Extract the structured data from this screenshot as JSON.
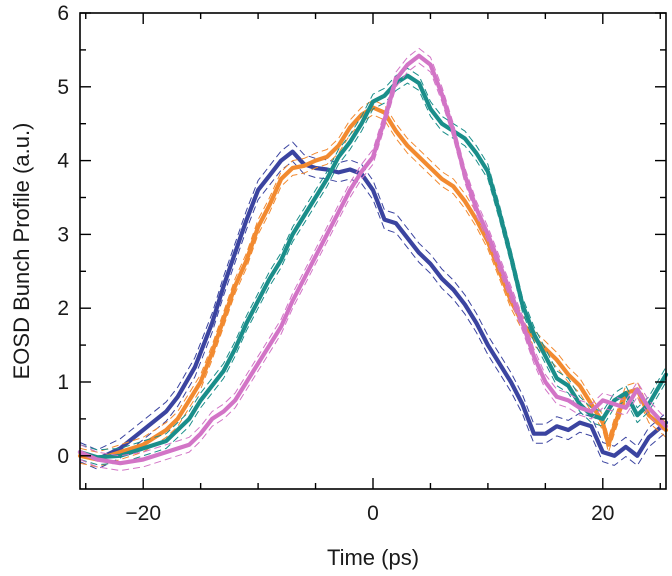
{
  "chart_data": {
    "type": "line",
    "xlabel": "Time (ps)",
    "ylabel": "EOSD Bunch Profile (a.u.)",
    "xlim": [
      -25.5,
      25.5
    ],
    "ylim": [
      -0.45,
      6
    ],
    "x_major_ticks": [
      -20,
      0,
      20
    ],
    "x_tick_labels": [
      "−20",
      "0",
      "20"
    ],
    "x_minor_ticks": [
      -25,
      -15,
      -10,
      -5,
      5,
      10,
      15,
      25
    ],
    "y_major_ticks": [
      0,
      1,
      2,
      3,
      4,
      5,
      6
    ],
    "y_tick_labels": [
      "0",
      "1",
      "2",
      "3",
      "4",
      "5",
      "6"
    ],
    "grid": false,
    "uncertainty_bands": "dashed lines above and below each series",
    "series": [
      {
        "color": "#3b44a0",
        "band": 0.13,
        "points": [
          [
            -25.5,
            0.05
          ],
          [
            -24,
            -0.05
          ],
          [
            -22,
            0.1
          ],
          [
            -20,
            0.35
          ],
          [
            -18,
            0.6
          ],
          [
            -17,
            0.8
          ],
          [
            -15.5,
            1.2
          ],
          [
            -14,
            1.8
          ],
          [
            -13,
            2.3
          ],
          [
            -12,
            2.75
          ],
          [
            -11,
            3.2
          ],
          [
            -10,
            3.6
          ],
          [
            -9,
            3.8
          ],
          [
            -8,
            4.0
          ],
          [
            -7,
            4.12
          ],
          [
            -6,
            3.95
          ],
          [
            -5,
            3.9
          ],
          [
            -4,
            3.88
          ],
          [
            -3,
            3.84
          ],
          [
            -2,
            3.88
          ],
          [
            -1,
            3.82
          ],
          [
            0,
            3.6
          ],
          [
            1,
            3.2
          ],
          [
            2,
            3.15
          ],
          [
            3,
            2.95
          ],
          [
            4,
            2.75
          ],
          [
            5,
            2.6
          ],
          [
            6,
            2.4
          ],
          [
            7,
            2.25
          ],
          [
            8,
            2.05
          ],
          [
            9,
            1.8
          ],
          [
            10,
            1.5
          ],
          [
            11,
            1.25
          ],
          [
            12,
            1.0
          ],
          [
            13,
            0.7
          ],
          [
            13.5,
            0.5
          ],
          [
            14,
            0.3
          ],
          [
            15,
            0.3
          ],
          [
            16,
            0.4
          ],
          [
            17,
            0.35
          ],
          [
            18,
            0.45
          ],
          [
            19,
            0.4
          ],
          [
            20,
            0.05
          ],
          [
            21,
            0.0
          ],
          [
            22,
            0.12
          ],
          [
            23,
            0.0
          ],
          [
            24,
            0.25
          ],
          [
            25.5,
            0.45
          ]
        ]
      },
      {
        "color": "#f28a30",
        "band": 0.1,
        "points": [
          [
            -25.5,
            0.0
          ],
          [
            -24,
            -0.05
          ],
          [
            -22,
            0.05
          ],
          [
            -20,
            0.15
          ],
          [
            -18,
            0.35
          ],
          [
            -17,
            0.5
          ],
          [
            -16,
            0.75
          ],
          [
            -15,
            1.0
          ],
          [
            -14,
            1.4
          ],
          [
            -13,
            1.85
          ],
          [
            -12,
            2.3
          ],
          [
            -11,
            2.65
          ],
          [
            -10,
            3.1
          ],
          [
            -9,
            3.4
          ],
          [
            -8,
            3.75
          ],
          [
            -7,
            3.9
          ],
          [
            -6,
            3.93
          ],
          [
            -5,
            4.0
          ],
          [
            -4,
            4.05
          ],
          [
            -3,
            4.2
          ],
          [
            -2,
            4.45
          ],
          [
            -1,
            4.62
          ],
          [
            0,
            4.72
          ],
          [
            1,
            4.65
          ],
          [
            2,
            4.4
          ],
          [
            3,
            4.2
          ],
          [
            4,
            4.05
          ],
          [
            5,
            3.9
          ],
          [
            6,
            3.75
          ],
          [
            7,
            3.65
          ],
          [
            8,
            3.45
          ],
          [
            9,
            3.2
          ],
          [
            10,
            2.9
          ],
          [
            11,
            2.5
          ],
          [
            12,
            2.1
          ],
          [
            13,
            1.8
          ],
          [
            14,
            1.6
          ],
          [
            15,
            1.45
          ],
          [
            16,
            1.3
          ],
          [
            17,
            1.1
          ],
          [
            18,
            0.95
          ],
          [
            19,
            0.7
          ],
          [
            20,
            0.45
          ],
          [
            20.5,
            0.15
          ],
          [
            21,
            0.4
          ],
          [
            22,
            0.85
          ],
          [
            23,
            0.9
          ],
          [
            24,
            0.55
          ],
          [
            25.5,
            0.35
          ]
        ]
      },
      {
        "color": "#1a8e8a",
        "band": 0.1,
        "points": [
          [
            -25.5,
            0.05
          ],
          [
            -24,
            -0.02
          ],
          [
            -22,
            0.0
          ],
          [
            -20,
            0.1
          ],
          [
            -18,
            0.2
          ],
          [
            -16,
            0.5
          ],
          [
            -15,
            0.75
          ],
          [
            -14,
            0.95
          ],
          [
            -13,
            1.15
          ],
          [
            -12,
            1.45
          ],
          [
            -11,
            1.8
          ],
          [
            -10,
            2.1
          ],
          [
            -9,
            2.4
          ],
          [
            -8,
            2.65
          ],
          [
            -7,
            3.0
          ],
          [
            -6,
            3.25
          ],
          [
            -5,
            3.5
          ],
          [
            -4,
            3.75
          ],
          [
            -3,
            4.05
          ],
          [
            -2,
            4.25
          ],
          [
            -1,
            4.5
          ],
          [
            0,
            4.8
          ],
          [
            1,
            4.88
          ],
          [
            2,
            5.05
          ],
          [
            3,
            5.15
          ],
          [
            4,
            5.05
          ],
          [
            5,
            4.7
          ],
          [
            6,
            4.5
          ],
          [
            7,
            4.4
          ],
          [
            8,
            4.3
          ],
          [
            9,
            4.1
          ],
          [
            10,
            3.85
          ],
          [
            11,
            3.3
          ],
          [
            12,
            2.7
          ],
          [
            13,
            2.05
          ],
          [
            14,
            1.65
          ],
          [
            15,
            1.35
          ],
          [
            16,
            1.05
          ],
          [
            17,
            0.95
          ],
          [
            18,
            0.7
          ],
          [
            19,
            0.55
          ],
          [
            20,
            0.5
          ],
          [
            21,
            0.75
          ],
          [
            22,
            0.85
          ],
          [
            23,
            0.55
          ],
          [
            24,
            0.7
          ],
          [
            25.5,
            1.1
          ]
        ]
      },
      {
        "color": "#d274c6",
        "band": 0.1,
        "points": [
          [
            -25.5,
            0.05
          ],
          [
            -24,
            -0.05
          ],
          [
            -22,
            -0.1
          ],
          [
            -20,
            -0.05
          ],
          [
            -18,
            0.05
          ],
          [
            -16,
            0.15
          ],
          [
            -15,
            0.3
          ],
          [
            -14,
            0.5
          ],
          [
            -13,
            0.6
          ],
          [
            -12,
            0.75
          ],
          [
            -11,
            1.0
          ],
          [
            -10,
            1.25
          ],
          [
            -9,
            1.5
          ],
          [
            -8,
            1.75
          ],
          [
            -7,
            2.1
          ],
          [
            -6,
            2.4
          ],
          [
            -5,
            2.7
          ],
          [
            -4,
            3.0
          ],
          [
            -3,
            3.3
          ],
          [
            -2,
            3.6
          ],
          [
            -1,
            3.85
          ],
          [
            0,
            4.05
          ],
          [
            1,
            4.55
          ],
          [
            2,
            5.1
          ],
          [
            3,
            5.3
          ],
          [
            4,
            5.42
          ],
          [
            5,
            5.3
          ],
          [
            6,
            4.9
          ],
          [
            7,
            4.4
          ],
          [
            8,
            3.8
          ],
          [
            9,
            3.35
          ],
          [
            10,
            3.0
          ],
          [
            11,
            2.6
          ],
          [
            12,
            2.2
          ],
          [
            13,
            1.8
          ],
          [
            14,
            1.35
          ],
          [
            15,
            1.0
          ],
          [
            16,
            0.8
          ],
          [
            17,
            0.75
          ],
          [
            18,
            0.65
          ],
          [
            19,
            0.6
          ],
          [
            20,
            0.75
          ],
          [
            21,
            0.7
          ],
          [
            22,
            0.65
          ],
          [
            23,
            0.9
          ],
          [
            24,
            0.65
          ],
          [
            25.5,
            0.4
          ]
        ]
      }
    ]
  }
}
